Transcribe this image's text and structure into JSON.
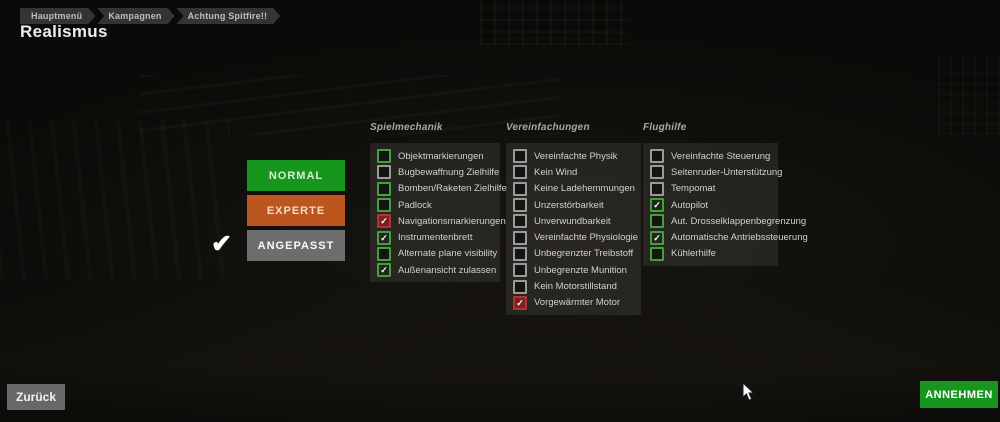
{
  "colors": {
    "preset_green": "#17961d",
    "preset_orange": "#bd561e",
    "preset_gray": "#6d6d6d",
    "back_gray": "#686868",
    "accept_green": "#17961d",
    "checkbox_green": "#43a03c",
    "checkbox_gray": "#9a9a9a",
    "checkbox_red": "#b23131"
  },
  "breadcrumb": {
    "items": [
      "Hauptmenü",
      "Kampagnen",
      "Achtung Spitfire!!"
    ]
  },
  "page": {
    "title": "Realismus"
  },
  "presets": {
    "selected": "ANGEPASST",
    "items": [
      {
        "label": "NORMAL",
        "style": "green",
        "selected": false
      },
      {
        "label": "EXPERTE",
        "style": "orange",
        "selected": false
      },
      {
        "label": "ANGEPASST",
        "style": "gray",
        "selected": true
      }
    ]
  },
  "settings_columns": [
    {
      "header": "Spielmechanik",
      "items": [
        {
          "label": "Objektmarkierungen",
          "accent": "green",
          "checked": false
        },
        {
          "label": "Bugbewaffnung Zielhilfe",
          "accent": "gray",
          "checked": false
        },
        {
          "label": "Bomben/Raketen Zielhilfe",
          "accent": "green",
          "checked": false
        },
        {
          "label": "Padlock",
          "accent": "green",
          "checked": false
        },
        {
          "label": "Navigationsmarkierungen",
          "accent": "red",
          "checked": true
        },
        {
          "label": "Instrumentenbrett",
          "accent": "green",
          "checked": true
        },
        {
          "label": "Alternate plane visibility",
          "accent": "green",
          "checked": false
        },
        {
          "label": "Außenansicht zulassen",
          "accent": "green",
          "checked": true
        }
      ]
    },
    {
      "header": "Vereinfachungen",
      "items": [
        {
          "label": "Vereinfachte Physik",
          "accent": "gray",
          "checked": false
        },
        {
          "label": "Kein Wind",
          "accent": "gray",
          "checked": false
        },
        {
          "label": "Keine Ladehemmungen",
          "accent": "gray",
          "checked": false
        },
        {
          "label": "Unzerstörbarkeit",
          "accent": "gray",
          "checked": false
        },
        {
          "label": "Unverwundbarkeit",
          "accent": "gray",
          "checked": false
        },
        {
          "label": "Vereinfachte Physiologie",
          "accent": "gray",
          "checked": false
        },
        {
          "label": "Unbegrenzter Treibstoff",
          "accent": "gray",
          "checked": false
        },
        {
          "label": "Unbegrenzte Munition",
          "accent": "gray",
          "checked": false
        },
        {
          "label": "Kein Motorstillstand",
          "accent": "gray",
          "checked": false
        },
        {
          "label": "Vorgewärmter Motor",
          "accent": "red",
          "checked": true
        }
      ]
    },
    {
      "header": "Flughilfe",
      "items": [
        {
          "label": "Vereinfachte Steuerung",
          "accent": "gray",
          "checked": false
        },
        {
          "label": "Seitenruder-Unterstützung",
          "accent": "gray",
          "checked": false
        },
        {
          "label": "Tempomat",
          "accent": "gray",
          "checked": false
        },
        {
          "label": "Autopilot",
          "accent": "green",
          "checked": true
        },
        {
          "label": "Aut. Drosselklappenbegrenzung",
          "accent": "green",
          "checked": false
        },
        {
          "label": "Automatische Antriebssteuerung",
          "accent": "green",
          "checked": true
        },
        {
          "label": "Kühlerhilfe",
          "accent": "green",
          "checked": false
        }
      ]
    }
  ],
  "footer": {
    "back_label": "Zurück",
    "accept_label": "ANNEHMEN"
  },
  "icons": {
    "selected_check": "✔",
    "checkbox_check": "✓"
  }
}
